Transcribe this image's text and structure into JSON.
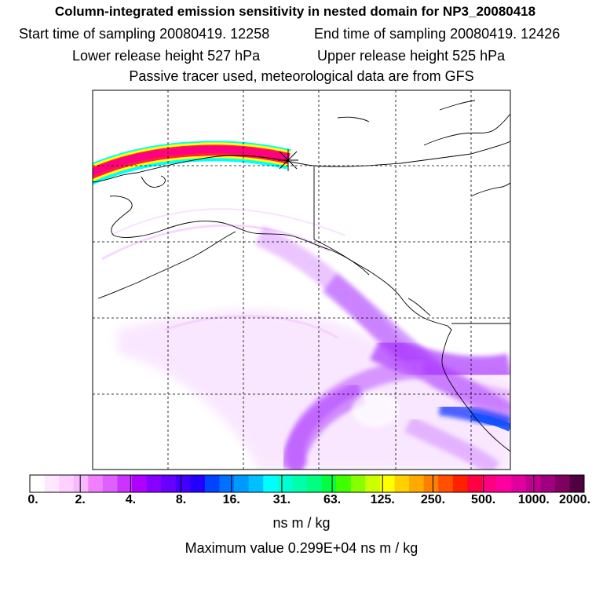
{
  "header": {
    "title": "Column-integrated emission sensitivity in nested domain for NP3_20080418",
    "start_label": "Start time of sampling 20080419. 12258",
    "end_label": "End time of sampling 20080419. 12426",
    "lower_label": "Lower release height  527 hPa",
    "upper_label": "Upper release height  525 hPa",
    "tracer_label": "Passive tracer used, meteorological data are from GFS"
  },
  "colorbar": {
    "tick_labels": [
      "0.",
      "2.",
      "4.",
      "8.",
      "16.",
      "31.",
      "63.",
      "125.",
      "250.",
      "500.",
      "1000.",
      "2000."
    ],
    "colors": [
      "#ffffff",
      "#ffe8ff",
      "#ffd0ff",
      "#f8b8ff",
      "#f080ff",
      "#e060ff",
      "#cc33ff",
      "#b000ff",
      "#8800ff",
      "#6600ff",
      "#4400ff",
      "#2200ff",
      "#0044ff",
      "#0070ff",
      "#0099ff",
      "#00c0ff",
      "#00ffff",
      "#00ffd0",
      "#00ffaa",
      "#00ff80",
      "#00ff40",
      "#40ff00",
      "#88ff00",
      "#ccff00",
      "#ffff00",
      "#ffd000",
      "#ffaa00",
      "#ff8000",
      "#ff5000",
      "#ff2000",
      "#ff0040",
      "#ff0080",
      "#ff00a0",
      "#e000a0",
      "#c00090",
      "#a00080",
      "#800060",
      "#500040"
    ],
    "units": "ns m / kg",
    "max_value_label": "Maximum value  0.299E+04 ns m / kg"
  }
}
